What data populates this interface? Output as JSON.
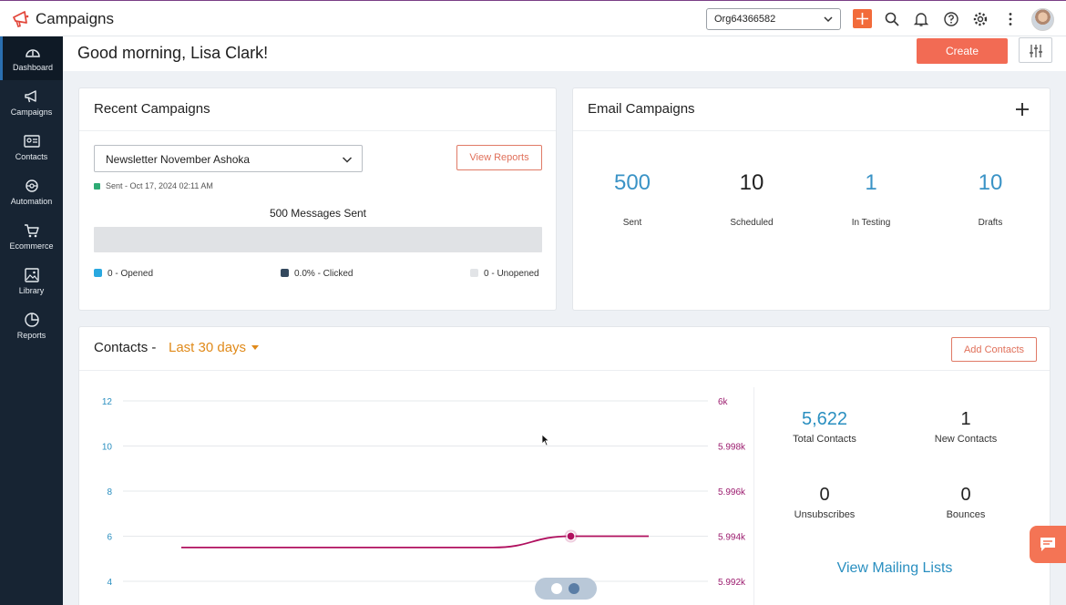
{
  "app": {
    "title": "Campaigns"
  },
  "topbar": {
    "org": "Org64366582"
  },
  "sidebar": {
    "items": [
      {
        "label": "Dashboard",
        "icon": "gauge-icon",
        "active": true
      },
      {
        "label": "Campaigns",
        "icon": "megaphone-icon"
      },
      {
        "label": "Contacts",
        "icon": "contact-card-icon"
      },
      {
        "label": "Automation",
        "icon": "automation-icon"
      },
      {
        "label": "Ecommerce",
        "icon": "cart-icon"
      },
      {
        "label": "Library",
        "icon": "image-icon"
      },
      {
        "label": "Reports",
        "icon": "pie-chart-icon"
      }
    ]
  },
  "header": {
    "greeting": "Good morning, Lisa Clark!",
    "create_label": "Create"
  },
  "recent": {
    "title": "Recent Campaigns",
    "selected": "Newsletter November Ashoka",
    "view_reports": "View Reports",
    "sent_status": "Sent - Oct 17, 2024 02:11 AM",
    "messages_sent": "500 Messages Sent",
    "legend": [
      {
        "label": "0 - Opened",
        "color": "#29a8e0"
      },
      {
        "label": "0.0% - Clicked",
        "color": "#34495e"
      },
      {
        "label": "0 - Unopened",
        "color": "#e2e4e7"
      }
    ]
  },
  "email": {
    "title": "Email Campaigns",
    "stats": [
      {
        "value": "500",
        "label": "Sent",
        "color": "#3a93c6"
      },
      {
        "value": "10",
        "label": "Scheduled",
        "color": "#222222"
      },
      {
        "value": "1",
        "label": "In Testing",
        "color": "#3a93c6"
      },
      {
        "value": "10",
        "label": "Drafts",
        "color": "#3a93c6"
      }
    ]
  },
  "contacts": {
    "title": "Contacts -",
    "range": "Last 30 days",
    "add_label": "Add Contacts",
    "stats": [
      {
        "value": "5,622",
        "label": "Total Contacts",
        "color": "#2a8fc0"
      },
      {
        "value": "1",
        "label": "New Contacts",
        "color": "#222222"
      },
      {
        "value": "0",
        "label": "Unsubscribes",
        "color": "#222222"
      },
      {
        "value": "0",
        "label": "Bounces",
        "color": "#222222"
      }
    ],
    "view_lists": "View Mailing Lists"
  },
  "chart_data": {
    "type": "line",
    "left_ticks": [
      "12",
      "10",
      "8",
      "6",
      "4"
    ],
    "right_ticks": [
      "6k",
      "5.998k",
      "5.996k",
      "5.994k",
      "5.992k"
    ],
    "left_axis_color": "#2a8fc0",
    "right_axis_color": "#9b1b6e",
    "series": [
      {
        "axis": "right",
        "color": "#b0105f",
        "points": [
          [
            0,
            5993.5
          ],
          [
            1,
            5993.5
          ],
          [
            2,
            5993.5
          ],
          [
            3,
            5993.5
          ],
          [
            4,
            5993.5
          ],
          [
            5,
            5994
          ],
          [
            6,
            5994
          ]
        ]
      }
    ],
    "highlight_index": 5,
    "right_range": [
      5992,
      6000
    ],
    "grid": true
  }
}
